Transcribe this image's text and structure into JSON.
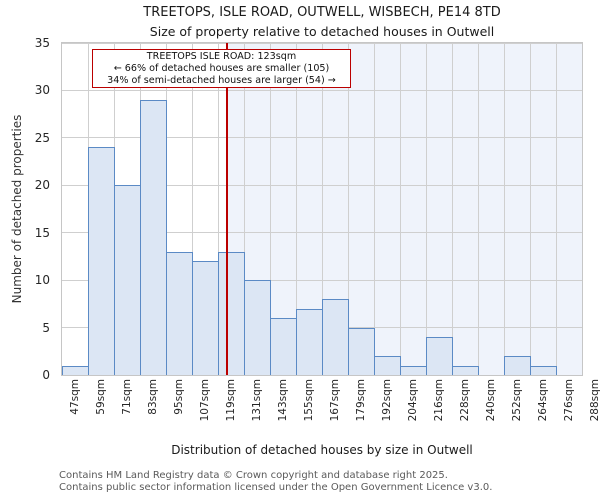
{
  "chart_data": {
    "type": "bar",
    "title": "TREETOPS, ISLE ROAD, OUTWELL, WISBECH, PE14 8TD",
    "subtitle": "Size of property relative to detached houses in Outwell",
    "xlabel": "Distribution of detached houses by size in Outwell",
    "ylabel": "Number of detached properties",
    "bin_edges": [
      47,
      59,
      71,
      83,
      95,
      107,
      119,
      131,
      143,
      155,
      167,
      179,
      192,
      204,
      216,
      228,
      240,
      252,
      264,
      276,
      288
    ],
    "bin_labels": [
      "47sqm",
      "59sqm",
      "71sqm",
      "83sqm",
      "95sqm",
      "107sqm",
      "119sqm",
      "131sqm",
      "143sqm",
      "155sqm",
      "167sqm",
      "179sqm",
      "192sqm",
      "204sqm",
      "216sqm",
      "228sqm",
      "240sqm",
      "252sqm",
      "264sqm",
      "276sqm",
      "288sqm"
    ],
    "values": [
      1,
      24,
      20,
      29,
      13,
      12,
      13,
      10,
      6,
      7,
      8,
      5,
      2,
      1,
      4,
      1,
      0,
      2,
      1,
      0
    ],
    "ylim": [
      0,
      35
    ],
    "yticks": [
      0,
      5,
      10,
      15,
      20,
      25,
      30,
      35
    ],
    "grid": true,
    "marker_value": 123,
    "marker_color": "#bb0000",
    "bar_fill": "#dce6f4",
    "bar_border": "#5b8ac5",
    "shade_color": "#eff3fb",
    "grid_color": "#cfcfcf",
    "annotation": {
      "line1": "TREETOPS ISLE ROAD: 123sqm",
      "line2": "← 66% of detached houses are smaller (105)",
      "line3": "34% of semi-detached houses are larger (54) →"
    }
  },
  "footer": {
    "line1": "Contains HM Land Registry data © Crown copyright and database right 2025.",
    "line2": "Contains public sector information licensed under the Open Government Licence v3.0."
  }
}
